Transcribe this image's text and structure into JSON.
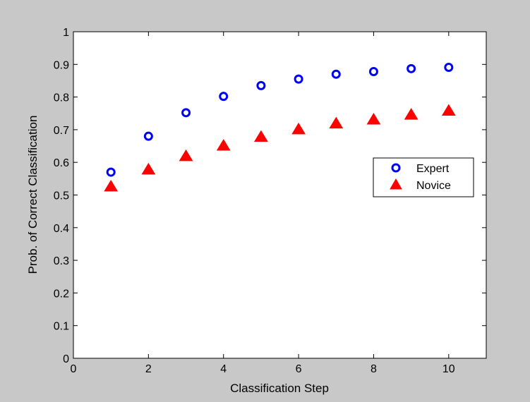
{
  "chart_data": {
    "type": "scatter",
    "title": "",
    "xlabel": "Classification Step",
    "ylabel": "Prob. of Correct Classification",
    "xlim": [
      0,
      11
    ],
    "ylim": [
      0,
      1
    ],
    "xticks": [
      0,
      2,
      4,
      6,
      8,
      10
    ],
    "yticks": [
      0,
      0.1,
      0.2,
      0.3,
      0.4,
      0.5,
      0.6,
      0.7,
      0.8,
      0.9,
      1
    ],
    "xtick_labels": [
      "0",
      "2",
      "4",
      "6",
      "8",
      "10"
    ],
    "ytick_labels": [
      "0",
      "0.1",
      "0.2",
      "0.3",
      "0.4",
      "0.5",
      "0.6",
      "0.7",
      "0.8",
      "0.9",
      "1"
    ],
    "grid": false,
    "legend_position": "center-right",
    "series": [
      {
        "name": "Expert",
        "marker": "circle",
        "color": "#0000ff",
        "x": [
          1,
          2,
          3,
          4,
          5,
          6,
          7,
          8,
          9,
          10
        ],
        "y": [
          0.57,
          0.68,
          0.752,
          0.802,
          0.835,
          0.855,
          0.87,
          0.878,
          0.887,
          0.891
        ]
      },
      {
        "name": "Novice",
        "marker": "triangle",
        "color": "#ff0000",
        "x": [
          1,
          2,
          3,
          4,
          5,
          6,
          7,
          8,
          9,
          10
        ],
        "y": [
          0.525,
          0.577,
          0.618,
          0.65,
          0.677,
          0.7,
          0.718,
          0.73,
          0.745,
          0.757
        ]
      }
    ]
  }
}
